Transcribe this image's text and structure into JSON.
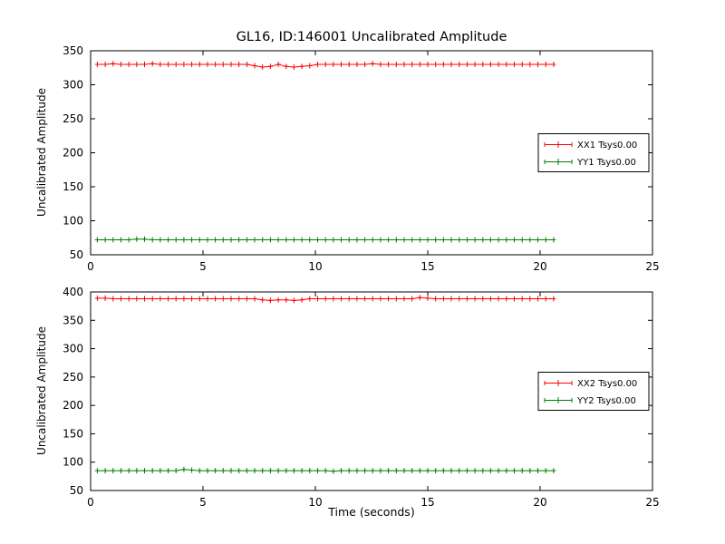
{
  "figure": {
    "background": "#ffffff",
    "axis_color": "#000000"
  },
  "chart_data": [
    {
      "type": "line",
      "marker": "plus-errorbar",
      "title": "GL16, ID:146001 Uncalibrated Amplitude",
      "xlabel": "",
      "ylabel": "Uncalibrated Amplitude",
      "xlim": [
        0,
        25
      ],
      "ylim": [
        50,
        350
      ],
      "xticks": [
        0,
        5,
        10,
        15,
        20,
        25
      ],
      "yticks": [
        50,
        100,
        150,
        200,
        250,
        300,
        350
      ],
      "grid": false,
      "legend_position": "center right",
      "x": [
        0.3,
        0.65,
        1.0,
        1.35,
        1.7,
        2.05,
        2.4,
        2.75,
        3.1,
        3.45,
        3.8,
        4.15,
        4.5,
        4.85,
        5.2,
        5.55,
        5.9,
        6.25,
        6.6,
        6.95,
        7.3,
        7.65,
        8.0,
        8.35,
        8.7,
        9.05,
        9.4,
        9.75,
        10.1,
        10.45,
        10.8,
        11.15,
        11.5,
        11.85,
        12.2,
        12.55,
        12.9,
        13.25,
        13.6,
        13.95,
        14.3,
        14.65,
        15.0,
        15.35,
        15.7,
        16.05,
        16.4,
        16.75,
        17.1,
        17.45,
        17.8,
        18.15,
        18.5,
        18.85,
        19.2,
        19.55,
        19.9,
        20.25,
        20.6
      ],
      "series": [
        {
          "name": "XX1 Tsys0.00",
          "color": "#ff0000",
          "values": [
            330,
            330,
            331,
            330,
            330,
            330,
            330,
            331,
            330,
            330,
            330,
            330,
            330,
            330,
            330,
            330,
            330,
            330,
            330,
            330,
            328,
            326,
            327,
            330,
            327,
            326,
            327,
            328,
            330,
            330,
            330,
            330,
            330,
            330,
            330,
            331,
            330,
            330,
            330,
            330,
            330,
            330,
            330,
            330,
            330,
            330,
            330,
            330,
            330,
            330,
            330,
            330,
            330,
            330,
            330,
            330,
            330,
            330,
            330
          ]
        },
        {
          "name": "YY1 Tsys0.00",
          "color": "#008000",
          "values": [
            72,
            72,
            72,
            72,
            72,
            73,
            73,
            72,
            72,
            72,
            72,
            72,
            72,
            72,
            72,
            72,
            72,
            72,
            72,
            72,
            72,
            72,
            72,
            72,
            72,
            72,
            72,
            72,
            72,
            72,
            72,
            72,
            72,
            72,
            72,
            72,
            72,
            72,
            72,
            72,
            72,
            72,
            72,
            72,
            72,
            72,
            72,
            72,
            72,
            72,
            72,
            72,
            72,
            72,
            72,
            72,
            72,
            72,
            72
          ]
        }
      ]
    },
    {
      "type": "line",
      "marker": "plus-errorbar",
      "title": "",
      "xlabel": "Time (seconds)",
      "ylabel": "Uncalibrated Amplitude",
      "xlim": [
        0,
        25
      ],
      "ylim": [
        50,
        400
      ],
      "xticks": [
        0,
        5,
        10,
        15,
        20,
        25
      ],
      "yticks": [
        50,
        100,
        150,
        200,
        250,
        300,
        350,
        400
      ],
      "grid": false,
      "legend_position": "center right",
      "x": [
        0.3,
        0.65,
        1.0,
        1.35,
        1.7,
        2.05,
        2.4,
        2.75,
        3.1,
        3.45,
        3.8,
        4.15,
        4.5,
        4.85,
        5.2,
        5.55,
        5.9,
        6.25,
        6.6,
        6.95,
        7.3,
        7.65,
        8.0,
        8.35,
        8.7,
        9.05,
        9.4,
        9.75,
        10.1,
        10.45,
        10.8,
        11.15,
        11.5,
        11.85,
        12.2,
        12.55,
        12.9,
        13.25,
        13.6,
        13.95,
        14.3,
        14.65,
        15.0,
        15.35,
        15.7,
        16.05,
        16.4,
        16.75,
        17.1,
        17.45,
        17.8,
        18.15,
        18.5,
        18.85,
        19.2,
        19.55,
        19.9,
        20.25,
        20.6
      ],
      "series": [
        {
          "name": "XX2 Tsys0.00",
          "color": "#ff0000",
          "values": [
            389,
            389,
            388,
            388,
            388,
            388,
            388,
            388,
            388,
            388,
            388,
            388,
            388,
            388,
            388,
            388,
            388,
            388,
            388,
            388,
            388,
            386,
            385,
            386,
            386,
            385,
            386,
            388,
            388,
            388,
            388,
            388,
            388,
            388,
            388,
            388,
            388,
            388,
            388,
            388,
            388,
            390,
            389,
            388,
            388,
            388,
            388,
            388,
            388,
            388,
            388,
            388,
            388,
            388,
            388,
            388,
            388,
            388,
            388
          ]
        },
        {
          "name": "YY2 Tsys0.00",
          "color": "#008000",
          "values": [
            85,
            85,
            85,
            85,
            85,
            85,
            85,
            85,
            85,
            85,
            85,
            87,
            86,
            85,
            85,
            85,
            85,
            85,
            85,
            85,
            85,
            85,
            85,
            85,
            85,
            85,
            85,
            85,
            85,
            85,
            84,
            85,
            85,
            85,
            85,
            85,
            85,
            85,
            85,
            85,
            85,
            85,
            85,
            85,
            85,
            85,
            85,
            85,
            85,
            85,
            85,
            85,
            85,
            85,
            85,
            85,
            85,
            85,
            85
          ]
        }
      ]
    }
  ]
}
